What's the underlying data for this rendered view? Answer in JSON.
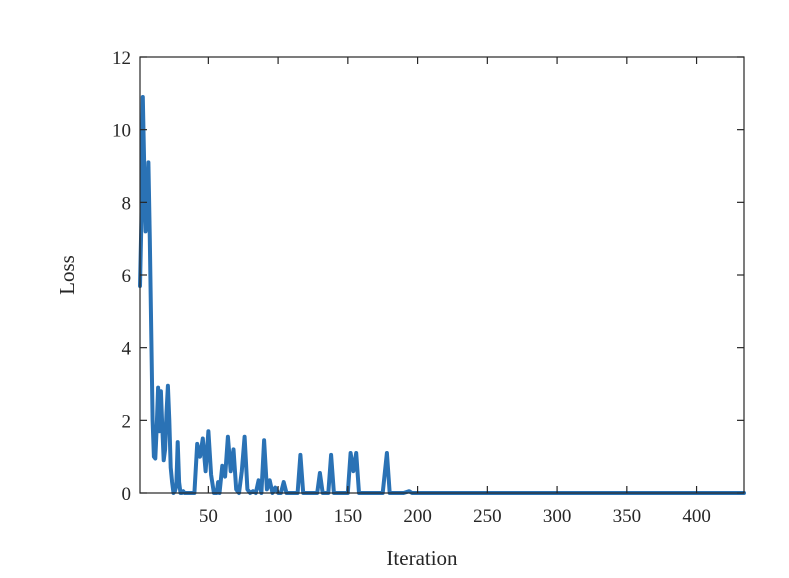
{
  "chart_data": {
    "type": "line",
    "title": "",
    "xlabel": "Iteration",
    "ylabel": "Loss",
    "xlim": [
      1,
      434
    ],
    "ylim": [
      0,
      12
    ],
    "x_ticks": [
      50,
      100,
      150,
      200,
      250,
      300,
      350,
      400
    ],
    "y_ticks": [
      0,
      2,
      4,
      6,
      8,
      10,
      12
    ],
    "grid": false,
    "line_color": "#2a72b5",
    "series": [
      {
        "x": [
          1,
          2,
          3,
          4,
          5,
          6,
          7,
          8,
          9,
          10,
          11,
          12,
          13,
          14,
          15,
          16,
          17,
          18,
          19,
          20,
          21,
          22,
          23,
          24,
          25,
          26,
          27,
          28,
          29,
          30,
          31,
          32,
          33,
          34,
          35,
          36,
          37,
          38,
          40,
          42,
          44,
          46,
          48,
          50,
          52,
          54,
          56,
          57,
          58,
          60,
          62,
          64,
          66,
          68,
          70,
          72,
          74,
          76,
          78,
          80,
          82,
          84,
          86,
          88,
          90,
          92,
          94,
          96,
          98,
          100,
          102,
          104,
          106,
          108,
          110,
          112,
          114,
          116,
          118,
          120,
          122,
          124,
          126,
          128,
          130,
          132,
          134,
          136,
          138,
          140,
          142,
          144,
          146,
          150,
          152,
          154,
          156,
          158,
          160,
          175,
          178,
          180,
          182,
          184,
          190,
          194,
          196,
          198,
          200,
          202,
          204,
          206,
          208,
          210,
          212,
          214,
          216,
          218,
          220,
          224,
          226,
          228,
          230,
          250,
          300,
          350,
          400,
          434
        ],
        "y": [
          5.7,
          7.5,
          10.9,
          9.0,
          7.2,
          7.8,
          9.1,
          7.0,
          4.5,
          2.0,
          1.0,
          0.95,
          1.8,
          2.9,
          1.7,
          2.8,
          1.8,
          0.9,
          1.2,
          2.2,
          2.95,
          2.0,
          0.7,
          0.3,
          0.0,
          0.05,
          0.2,
          1.4,
          0.3,
          0.0,
          0.0,
          0.05,
          0.0,
          0.0,
          0.0,
          0.0,
          0.0,
          0.0,
          0.0,
          1.35,
          1.0,
          1.5,
          0.6,
          1.7,
          0.5,
          0.0,
          0.0,
          0.3,
          0.0,
          0.75,
          0.45,
          1.55,
          0.6,
          1.2,
          0.1,
          0.0,
          0.6,
          1.55,
          0.1,
          0.0,
          0.05,
          0.0,
          0.35,
          0.0,
          1.45,
          0.1,
          0.35,
          0.0,
          0.15,
          0.0,
          0.0,
          0.3,
          0.0,
          0.0,
          0.0,
          0.0,
          0.0,
          1.05,
          0.0,
          0.0,
          0.0,
          0.0,
          0.0,
          0.0,
          0.55,
          0.0,
          0.0,
          0.0,
          1.05,
          0.0,
          0.0,
          0.0,
          0.0,
          0.0,
          1.1,
          0.6,
          1.1,
          0.0,
          0.0,
          0.0,
          1.1,
          0.0,
          0.0,
          0.0,
          0.0,
          0.05,
          0.0,
          0.0,
          0.0,
          0.0,
          0.0,
          0.0,
          0.0,
          0.0,
          0.0,
          0.0,
          0.0,
          0.0,
          0.0,
          0.0,
          0.0,
          0.0,
          0.0,
          0.0,
          0.0,
          0.0,
          0.0,
          0.0
        ]
      }
    ]
  }
}
